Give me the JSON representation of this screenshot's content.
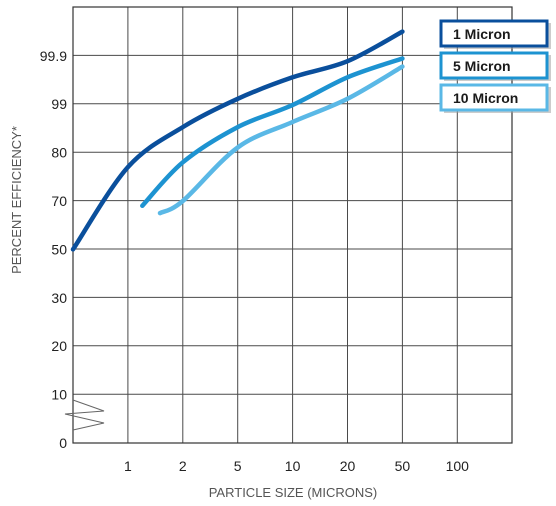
{
  "chart_data": {
    "type": "line",
    "xlabel": "PARTICLE SIZE (MICRONS)",
    "ylabel": "PERCENT EFFICIENCY*",
    "x_ticks": [
      "1",
      "2",
      "5",
      "10",
      "20",
      "50",
      "100"
    ],
    "y_ticks": [
      "0",
      "10",
      "20",
      "30",
      "50",
      "70",
      "80",
      "99",
      "99.9"
    ],
    "grid": true,
    "legend_position": "top-right",
    "axis_break": "y-axis between 0 and 10",
    "series": [
      {
        "name": "1 Micron",
        "color": "#0a4f9c",
        "points": [
          {
            "x": 0.5,
            "y": 50
          },
          {
            "x": 1,
            "y": 77
          },
          {
            "x": 2,
            "y": 90
          },
          {
            "x": 5,
            "y": 99.1
          },
          {
            "x": 10,
            "y": 99.5
          },
          {
            "x": 20,
            "y": 99.8
          },
          {
            "x": 50,
            "y": 99.95
          }
        ]
      },
      {
        "name": "5 Micron",
        "color": "#1d93d1",
        "points": [
          {
            "x": 1.2,
            "y": 68
          },
          {
            "x": 2,
            "y": 78
          },
          {
            "x": 5,
            "y": 90
          },
          {
            "x": 10,
            "y": 98.7
          },
          {
            "x": 20,
            "y": 99.5
          },
          {
            "x": 50,
            "y": 99.85
          }
        ]
      },
      {
        "name": "10 Micron",
        "color": "#5ab8e6",
        "points": [
          {
            "x": 1.5,
            "y": 65
          },
          {
            "x": 2,
            "y": 70
          },
          {
            "x": 5,
            "y": 82
          },
          {
            "x": 10,
            "y": 92
          },
          {
            "x": 20,
            "y": 99.1
          },
          {
            "x": 50,
            "y": 99.7
          }
        ]
      }
    ]
  }
}
